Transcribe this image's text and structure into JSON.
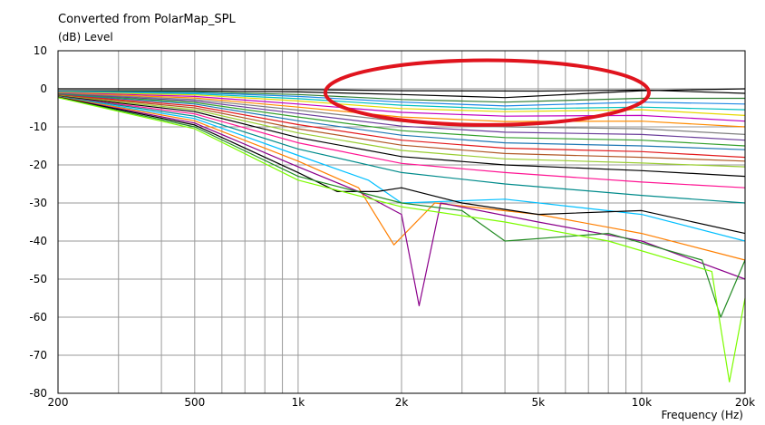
{
  "chart_data": {
    "type": "line",
    "title": "Converted from PolarMap_SPL",
    "ylabel": "(dB)  Level",
    "xlabel": "Frequency  (Hz)",
    "x_scale": "log",
    "xlim": [
      200,
      20000
    ],
    "ylim": [
      -80,
      10
    ],
    "x_ticks": [
      200,
      500,
      1000,
      2000,
      5000,
      10000,
      20000
    ],
    "x_tick_labels": [
      "200",
      "500",
      "1k",
      "2k",
      "5k",
      "10k",
      "20k"
    ],
    "y_ticks": [
      10,
      0,
      -10,
      -20,
      -30,
      -40,
      -50,
      -60,
      -70,
      -80
    ],
    "y_tick_labels": [
      "10",
      "0",
      "-10",
      "-20",
      "-30",
      "-40",
      "-50",
      "-60",
      "-70",
      "-80"
    ],
    "grid": true,
    "legend": "none",
    "annotation": {
      "shape": "ellipse",
      "color": "#e0141e",
      "x_range": [
        1200,
        10500
      ],
      "y_range": [
        -9.5,
        7.5
      ]
    },
    "series": [
      {
        "color": "#000000",
        "x": [
          200,
          500,
          1000,
          2000,
          5000,
          10000,
          20000
        ],
        "y": [
          0,
          0,
          -0.2,
          -0.5,
          -0.6,
          -0.3,
          -1.2
        ]
      },
      {
        "color": "#000000",
        "x": [
          200,
          500,
          1000,
          2000,
          4000,
          10000,
          20000
        ],
        "y": [
          -0.5,
          -0.5,
          -0.8,
          -1.5,
          -2.3,
          -0.5,
          0
        ]
      },
      {
        "color": "#2e7d32",
        "x": [
          200,
          500,
          1000,
          2000,
          4000,
          10000,
          20000
        ],
        "y": [
          -0.6,
          -0.8,
          -1.5,
          -2.8,
          -3.5,
          -2.5,
          -2.5
        ]
      },
      {
        "color": "#1e88e5",
        "x": [
          200,
          500,
          1000,
          2000,
          4000,
          10000,
          20000
        ],
        "y": [
          -0.7,
          -1.0,
          -2.0,
          -3.5,
          -4.5,
          -3.5,
          -4.0
        ]
      },
      {
        "color": "#00c0c0",
        "x": [
          200,
          500,
          1000,
          2000,
          4000,
          10000,
          20000
        ],
        "y": [
          -0.8,
          -1.3,
          -2.6,
          -4.3,
          -5.3,
          -4.8,
          -5.5
        ]
      },
      {
        "color": "#e6d800",
        "x": [
          200,
          500,
          1000,
          2000,
          4000,
          10000,
          20000
        ],
        "y": [
          -0.9,
          -1.6,
          -3.2,
          -5.2,
          -6.0,
          -5.5,
          -7.0
        ]
      },
      {
        "color": "#c000c0",
        "x": [
          200,
          500,
          1000,
          2000,
          4000,
          10000,
          20000
        ],
        "y": [
          -1.0,
          -2.0,
          -4.0,
          -6.2,
          -7.2,
          -7.0,
          -8.5
        ]
      },
      {
        "color": "#ff8c00",
        "x": [
          200,
          500,
          1000,
          2000,
          4000,
          10000,
          20000
        ],
        "y": [
          -1.1,
          -2.4,
          -4.8,
          -7.4,
          -8.6,
          -8.5,
          -10.0
        ]
      },
      {
        "color": "#808080",
        "x": [
          200,
          500,
          1000,
          2000,
          4000,
          10000,
          20000
        ],
        "y": [
          -1.2,
          -2.8,
          -5.6,
          -8.6,
          -10.0,
          -10.5,
          -12.0
        ]
      },
      {
        "color": "#6a3d9a",
        "x": [
          200,
          500,
          1000,
          2000,
          4000,
          10000,
          20000
        ],
        "y": [
          -1.3,
          -3.2,
          -6.5,
          -9.8,
          -11.4,
          -12.0,
          -13.5
        ]
      },
      {
        "color": "#33a02c",
        "x": [
          200,
          500,
          1000,
          2000,
          4000,
          10000,
          20000
        ],
        "y": [
          -1.4,
          -3.6,
          -7.4,
          -11.0,
          -12.8,
          -13.5,
          -15.0
        ]
      },
      {
        "color": "#1f78b4",
        "x": [
          200,
          500,
          1000,
          2000,
          4000,
          10000,
          20000
        ],
        "y": [
          -1.5,
          -4.0,
          -8.4,
          -12.2,
          -14.2,
          -15.0,
          -16.0
        ]
      },
      {
        "color": "#e31a1c",
        "x": [
          200,
          500,
          1000,
          2000,
          4000,
          10000,
          20000
        ],
        "y": [
          -1.6,
          -4.5,
          -9.4,
          -13.5,
          -15.6,
          -16.5,
          -18.0
        ]
      },
      {
        "color": "#b15928",
        "x": [
          200,
          500,
          1000,
          2000,
          4000,
          10000,
          20000
        ],
        "y": [
          -1.7,
          -5.0,
          -10.5,
          -14.8,
          -17.0,
          -18.0,
          -19.0
        ]
      },
      {
        "color": "#9acd32",
        "x": [
          200,
          500,
          1000,
          2000,
          4000,
          10000,
          20000
        ],
        "y": [
          -1.8,
          -5.5,
          -11.6,
          -16.2,
          -18.4,
          -19.5,
          -20.5
        ]
      },
      {
        "color": "#000000",
        "x": [
          200,
          500,
          1000,
          2000,
          4000,
          10000,
          20000
        ],
        "y": [
          -1.9,
          -6.0,
          -12.8,
          -17.8,
          -20.0,
          -21.5,
          -23.0
        ]
      },
      {
        "color": "#ff1493",
        "x": [
          200,
          500,
          1000,
          2000,
          4000,
          10000,
          20000
        ],
        "y": [
          -2.0,
          -6.6,
          -14.2,
          -19.6,
          -22.0,
          -24.5,
          -26.0
        ]
      },
      {
        "color": "#008b8b",
        "x": [
          200,
          500,
          1000,
          2000,
          4000,
          10000,
          20000
        ],
        "y": [
          -2.0,
          -7.2,
          -15.8,
          -22.0,
          -25.0,
          -28.0,
          -30.0
        ]
      },
      {
        "color": "#00bfff",
        "x": [
          200,
          500,
          1000,
          1600,
          2000,
          4000,
          10000,
          20000
        ],
        "y": [
          -2.1,
          -7.8,
          -17.5,
          -24.0,
          -30.0,
          -29.0,
          -33.0,
          -40.0
        ]
      },
      {
        "color": "#ff7f00",
        "x": [
          200,
          500,
          1000,
          1500,
          1900,
          2500,
          5000,
          10000,
          20000
        ],
        "y": [
          -2.1,
          -8.4,
          -19.0,
          -26.0,
          -41.0,
          -30.0,
          -33.0,
          -38.0,
          -45.0
        ]
      },
      {
        "color": "#8b008b",
        "x": [
          200,
          500,
          1000,
          1500,
          2000,
          2250,
          2600,
          5000,
          10000,
          20000
        ],
        "y": [
          -2.2,
          -9.0,
          -20.5,
          -27.0,
          -33.0,
          -57.0,
          -30.0,
          -35.0,
          -40.0,
          -50.0
        ]
      },
      {
        "color": "#000000",
        "x": [
          200,
          500,
          1000,
          1300,
          1700,
          2000,
          3000,
          5000,
          10000,
          20000
        ],
        "y": [
          -2.2,
          -9.5,
          -22.0,
          -27.0,
          -27.0,
          -26.0,
          -30.0,
          -33.0,
          -32.0,
          -38.0
        ]
      },
      {
        "color": "#228b22",
        "x": [
          200,
          500,
          1000,
          2000,
          3000,
          4000,
          8000,
          15000,
          17000,
          20000
        ],
        "y": [
          -2.3,
          -10.0,
          -23.0,
          -30.0,
          -32.0,
          -40.0,
          -38.0,
          -45.0,
          -60.0,
          -45.0
        ]
      },
      {
        "color": "#7cfc00",
        "x": [
          200,
          500,
          1000,
          2000,
          4000,
          8000,
          16000,
          18000,
          20000
        ],
        "y": [
          -2.3,
          -10.5,
          -24.0,
          -31.0,
          -35.0,
          -40.0,
          -48.0,
          -77.0,
          -55.0
        ]
      }
    ]
  }
}
